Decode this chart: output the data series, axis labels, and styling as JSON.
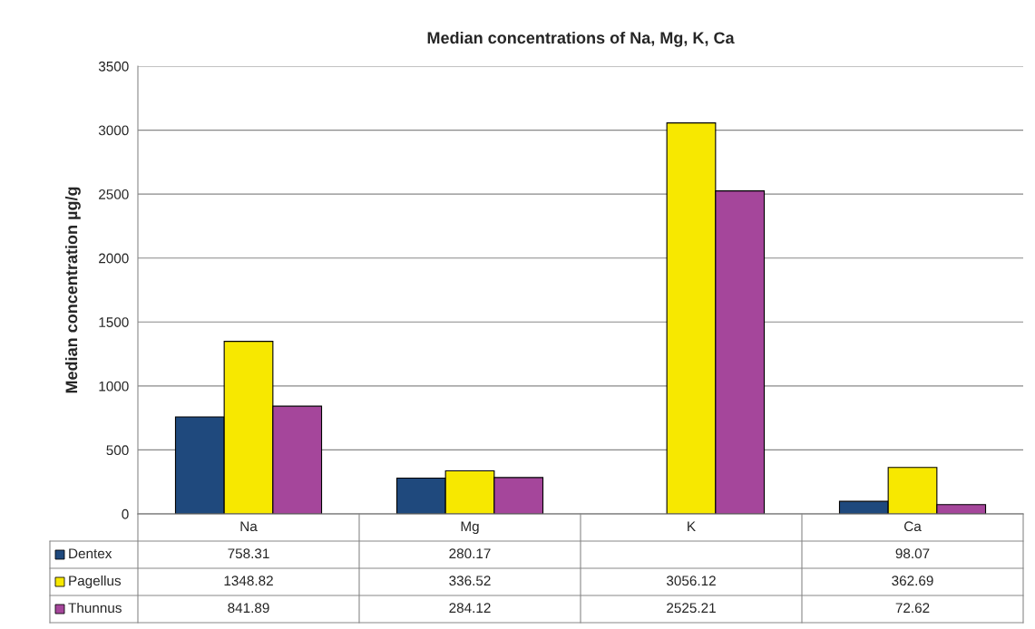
{
  "chart_data": {
    "type": "bar",
    "title": "Median concentrations of Na, Mg, K, Ca",
    "ylabel": "Median concentration µg/g",
    "categories": [
      "Na",
      "Mg",
      "K",
      "Ca"
    ],
    "series": [
      {
        "name": "Dentex",
        "color": "#1f497d",
        "values": [
          758.31,
          280.17,
          null,
          98.07
        ]
      },
      {
        "name": "Pagellus",
        "color": "#f7e800",
        "values": [
          1348.82,
          336.52,
          3056.12,
          362.69
        ]
      },
      {
        "name": "Thunnus",
        "color": "#a5469b",
        "values": [
          841.89,
          284.12,
          2525.21,
          72.62
        ]
      }
    ],
    "ylim": [
      0,
      3500
    ],
    "yticks": [
      0,
      500,
      1000,
      1500,
      2000,
      2500,
      3000,
      3500
    ],
    "grid": "y",
    "data_labels": true,
    "legend": "bottom"
  }
}
